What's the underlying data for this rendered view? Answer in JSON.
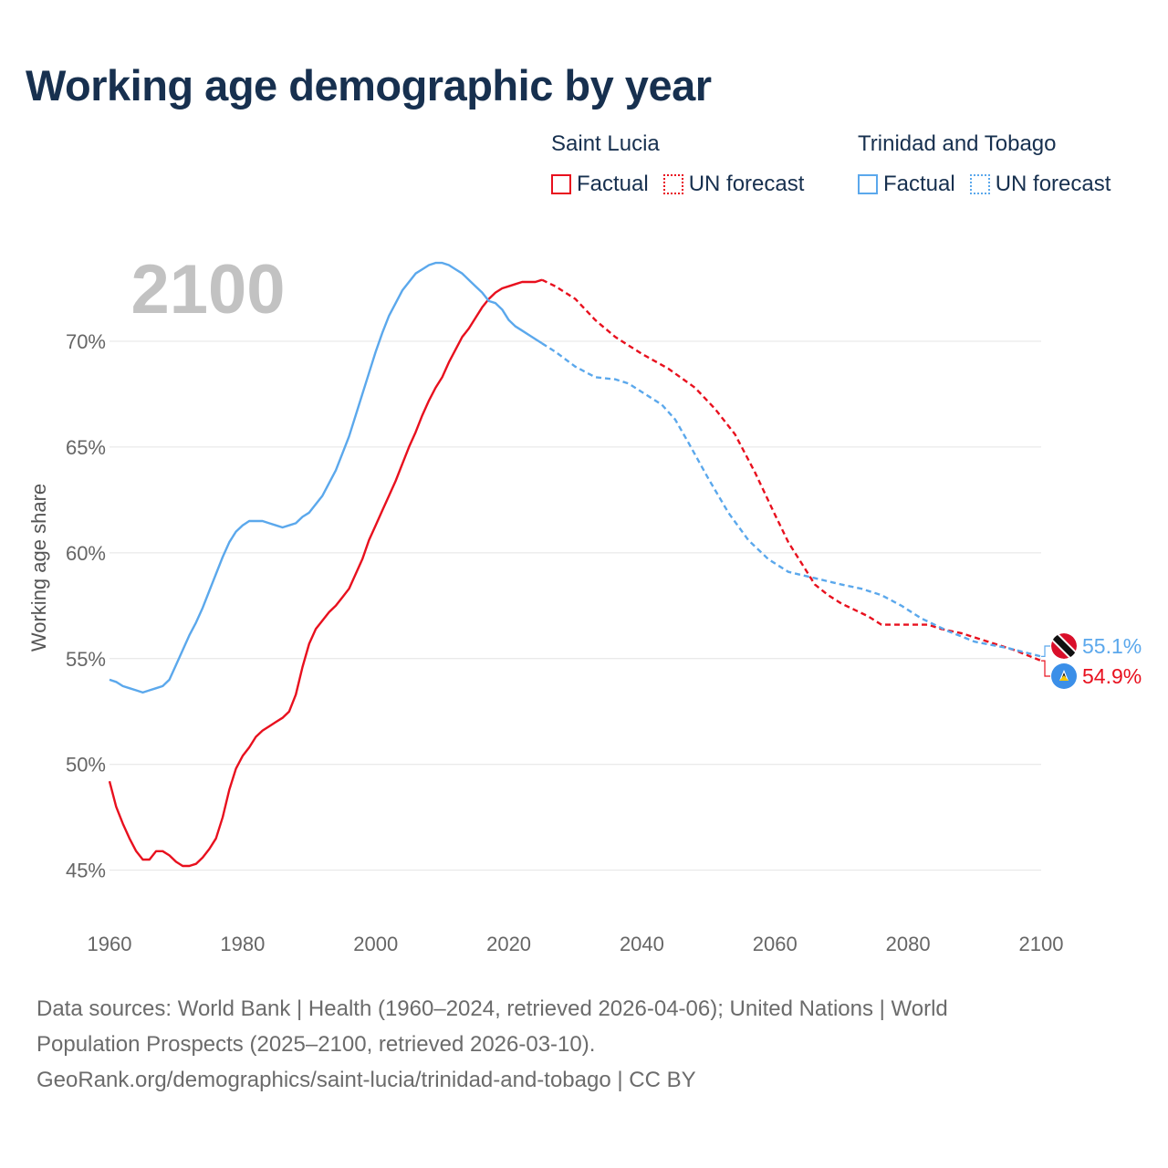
{
  "title": "Working age demographic by year",
  "year_overlay": "2100",
  "legend": {
    "groups": [
      {
        "name": "Saint Lucia",
        "factual_label": "Factual",
        "forecast_label": "UN forecast",
        "color": "#e8101e"
      },
      {
        "name": "Trinidad and Tobago",
        "factual_label": "Factual",
        "forecast_label": "UN forecast",
        "color": "#5ba8ec"
      }
    ]
  },
  "footer": {
    "line1": "Data sources: World Bank | Health (1960–2024, retrieved 2026-04-06); United Nations | World",
    "line2": "Population Prospects (2025–2100, retrieved 2026-03-10).",
    "line3": "GeoRank.org/demographics/saint-lucia/trinidad-and-tobago | CC BY"
  },
  "chart_data": {
    "type": "line",
    "title": "Working age demographic by year",
    "xlabel": "",
    "ylabel": "Working age share",
    "xlim": [
      1960,
      2100
    ],
    "ylim": [
      43,
      75
    ],
    "x_ticks": [
      "1960",
      "1980",
      "2000",
      "2020",
      "2040",
      "2060",
      "2080",
      "2100"
    ],
    "y_ticks": [
      "45%",
      "50%",
      "55%",
      "60%",
      "65%",
      "70%"
    ],
    "y_tick_values": [
      45,
      50,
      55,
      60,
      65,
      70
    ],
    "forecast_start_year": 2025,
    "series": [
      {
        "name": "Saint Lucia",
        "color": "#e8101e",
        "end_label": "54.9%",
        "flag": "saint-lucia-flag-icon",
        "points": [
          [
            1960,
            49.2
          ],
          [
            1961,
            48.0
          ],
          [
            1962,
            47.2
          ],
          [
            1963,
            46.5
          ],
          [
            1964,
            45.9
          ],
          [
            1965,
            45.5
          ],
          [
            1966,
            45.5
          ],
          [
            1967,
            45.9
          ],
          [
            1968,
            45.9
          ],
          [
            1969,
            45.7
          ],
          [
            1970,
            45.4
          ],
          [
            1971,
            45.2
          ],
          [
            1972,
            45.2
          ],
          [
            1973,
            45.3
          ],
          [
            1974,
            45.6
          ],
          [
            1975,
            46.0
          ],
          [
            1976,
            46.5
          ],
          [
            1977,
            47.5
          ],
          [
            1978,
            48.8
          ],
          [
            1979,
            49.8
          ],
          [
            1980,
            50.4
          ],
          [
            1981,
            50.8
          ],
          [
            1982,
            51.3
          ],
          [
            1983,
            51.6
          ],
          [
            1984,
            51.8
          ],
          [
            1985,
            52.0
          ],
          [
            1986,
            52.2
          ],
          [
            1987,
            52.5
          ],
          [
            1988,
            53.3
          ],
          [
            1989,
            54.6
          ],
          [
            1990,
            55.7
          ],
          [
            1991,
            56.4
          ],
          [
            1992,
            56.8
          ],
          [
            1993,
            57.2
          ],
          [
            1994,
            57.5
          ],
          [
            1995,
            57.9
          ],
          [
            1996,
            58.3
          ],
          [
            1997,
            59.0
          ],
          [
            1998,
            59.7
          ],
          [
            1999,
            60.6
          ],
          [
            2000,
            61.3
          ],
          [
            2001,
            62.0
          ],
          [
            2002,
            62.7
          ],
          [
            2003,
            63.4
          ],
          [
            2004,
            64.2
          ],
          [
            2005,
            65.0
          ],
          [
            2006,
            65.7
          ],
          [
            2007,
            66.5
          ],
          [
            2008,
            67.2
          ],
          [
            2009,
            67.8
          ],
          [
            2010,
            68.3
          ],
          [
            2011,
            69.0
          ],
          [
            2012,
            69.6
          ],
          [
            2013,
            70.2
          ],
          [
            2014,
            70.6
          ],
          [
            2015,
            71.1
          ],
          [
            2016,
            71.6
          ],
          [
            2017,
            72.0
          ],
          [
            2018,
            72.3
          ],
          [
            2019,
            72.5
          ],
          [
            2020,
            72.6
          ],
          [
            2021,
            72.7
          ],
          [
            2022,
            72.8
          ],
          [
            2023,
            72.8
          ],
          [
            2024,
            72.8
          ],
          [
            2025,
            72.9
          ],
          [
            2027,
            72.6
          ],
          [
            2030,
            72.0
          ],
          [
            2033,
            71.0
          ],
          [
            2036,
            70.2
          ],
          [
            2040,
            69.4
          ],
          [
            2044,
            68.7
          ],
          [
            2048,
            67.8
          ],
          [
            2051,
            66.8
          ],
          [
            2054,
            65.6
          ],
          [
            2057,
            63.8
          ],
          [
            2060,
            61.8
          ],
          [
            2062,
            60.5
          ],
          [
            2064,
            59.5
          ],
          [
            2066,
            58.5
          ],
          [
            2068,
            58.0
          ],
          [
            2070,
            57.6
          ],
          [
            2072,
            57.3
          ],
          [
            2074,
            57.0
          ],
          [
            2076,
            56.6
          ],
          [
            2080,
            56.6
          ],
          [
            2083,
            56.6
          ],
          [
            2085,
            56.4
          ],
          [
            2088,
            56.2
          ],
          [
            2092,
            55.8
          ],
          [
            2096,
            55.4
          ],
          [
            2100,
            54.9
          ]
        ]
      },
      {
        "name": "Trinidad and Tobago",
        "color": "#5ba8ec",
        "end_label": "55.1%",
        "flag": "trinidad-and-tobago-flag-icon",
        "points": [
          [
            1960,
            54.0
          ],
          [
            1961,
            53.9
          ],
          [
            1962,
            53.7
          ],
          [
            1963,
            53.6
          ],
          [
            1964,
            53.5
          ],
          [
            1965,
            53.4
          ],
          [
            1966,
            53.5
          ],
          [
            1967,
            53.6
          ],
          [
            1968,
            53.7
          ],
          [
            1969,
            54.0
          ],
          [
            1970,
            54.7
          ],
          [
            1971,
            55.4
          ],
          [
            1972,
            56.1
          ],
          [
            1973,
            56.7
          ],
          [
            1974,
            57.4
          ],
          [
            1975,
            58.2
          ],
          [
            1976,
            59.0
          ],
          [
            1977,
            59.8
          ],
          [
            1978,
            60.5
          ],
          [
            1979,
            61.0
          ],
          [
            1980,
            61.3
          ],
          [
            1981,
            61.5
          ],
          [
            1982,
            61.5
          ],
          [
            1983,
            61.5
          ],
          [
            1984,
            61.4
          ],
          [
            1985,
            61.3
          ],
          [
            1986,
            61.2
          ],
          [
            1987,
            61.3
          ],
          [
            1988,
            61.4
          ],
          [
            1989,
            61.7
          ],
          [
            1990,
            61.9
          ],
          [
            1991,
            62.3
          ],
          [
            1992,
            62.7
          ],
          [
            1993,
            63.3
          ],
          [
            1994,
            63.9
          ],
          [
            1995,
            64.7
          ],
          [
            1996,
            65.5
          ],
          [
            1997,
            66.5
          ],
          [
            1998,
            67.5
          ],
          [
            1999,
            68.5
          ],
          [
            2000,
            69.5
          ],
          [
            2001,
            70.4
          ],
          [
            2002,
            71.2
          ],
          [
            2003,
            71.8
          ],
          [
            2004,
            72.4
          ],
          [
            2005,
            72.8
          ],
          [
            2006,
            73.2
          ],
          [
            2007,
            73.4
          ],
          [
            2008,
            73.6
          ],
          [
            2009,
            73.7
          ],
          [
            2010,
            73.7
          ],
          [
            2011,
            73.6
          ],
          [
            2012,
            73.4
          ],
          [
            2013,
            73.2
          ],
          [
            2014,
            72.9
          ],
          [
            2015,
            72.6
          ],
          [
            2016,
            72.3
          ],
          [
            2017,
            71.9
          ],
          [
            2018,
            71.8
          ],
          [
            2019,
            71.5
          ],
          [
            2020,
            71.0
          ],
          [
            2021,
            70.7
          ],
          [
            2022,
            70.5
          ],
          [
            2023,
            70.3
          ],
          [
            2024,
            70.1
          ],
          [
            2025,
            69.9
          ],
          [
            2027,
            69.5
          ],
          [
            2030,
            68.8
          ],
          [
            2033,
            68.3
          ],
          [
            2036,
            68.2
          ],
          [
            2038,
            68.0
          ],
          [
            2041,
            67.4
          ],
          [
            2043,
            67.0
          ],
          [
            2045,
            66.3
          ],
          [
            2047,
            65.2
          ],
          [
            2050,
            63.5
          ],
          [
            2053,
            61.9
          ],
          [
            2056,
            60.6
          ],
          [
            2059,
            59.7
          ],
          [
            2062,
            59.1
          ],
          [
            2066,
            58.8
          ],
          [
            2070,
            58.5
          ],
          [
            2073,
            58.3
          ],
          [
            2076,
            58.0
          ],
          [
            2079,
            57.5
          ],
          [
            2082,
            56.9
          ],
          [
            2086,
            56.3
          ],
          [
            2090,
            55.8
          ],
          [
            2095,
            55.5
          ],
          [
            2100,
            55.1
          ]
        ]
      }
    ]
  }
}
